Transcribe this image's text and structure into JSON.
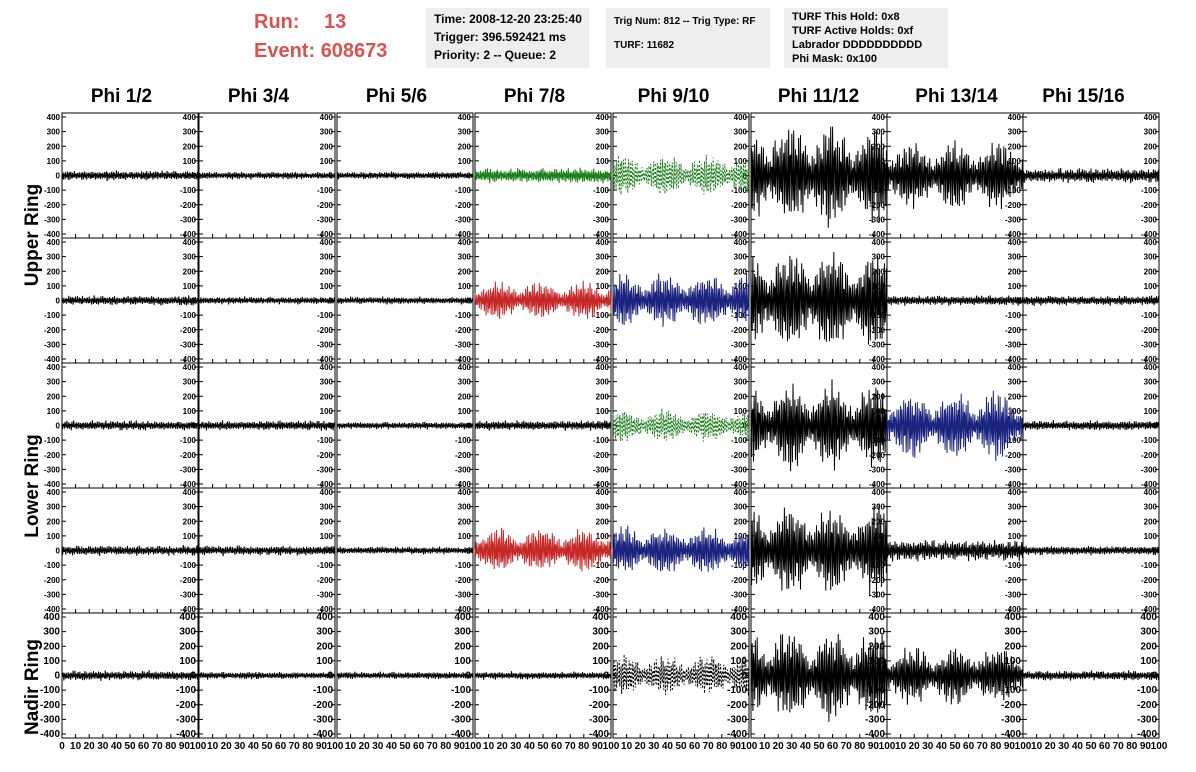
{
  "run": {
    "run_label": "Run:",
    "run_value": "13",
    "event_label": "Event:",
    "event_value": "608673"
  },
  "info_time": {
    "line1": "Time: 2008-12-20 23:25:40",
    "line2": "Trigger: 396.592421 ms",
    "line3": "Priority: 2 -- Queue: 2"
  },
  "info_trig": {
    "line1": "Trig Num: 812 -- Trig Type: RF",
    "line2": "TURF: 11682"
  },
  "info_turf": {
    "line1": "TURF This Hold: 0x8",
    "line2": "TURF Active Holds: 0xf",
    "line3": "Labrador DDDDDDDDDD",
    "line4": "Phi Mask: 0x100"
  },
  "columns": [
    "Phi 1/2",
    "Phi 3/4",
    "Phi 5/6",
    "Phi 7/8",
    "Phi 9/10",
    "Phi 11/12",
    "Phi 13/14",
    "Phi 15/16"
  ],
  "ring_labels": {
    "upper": "Upper Ring",
    "lower": "Lower Ring",
    "nadir": "Nadir Ring"
  },
  "colors": {
    "title_red": "#d9534f",
    "panel_bg": "#eeeeee",
    "trace_black": "#000000",
    "trace_green": "#1a7f1a",
    "trace_red": "#c62828",
    "trace_blue": "#1a237e"
  },
  "chart_data": {
    "type": "line",
    "title": "",
    "xlabel": "",
    "ylabel": "",
    "xlim": [
      0,
      100
    ],
    "ylim": [
      -400,
      400
    ],
    "y_ticks": [
      -400,
      -300,
      -200,
      -100,
      0,
      100,
      200,
      300,
      400
    ],
    "x_ticks": [
      0,
      10,
      20,
      30,
      40,
      50,
      60,
      70,
      80,
      90,
      100
    ],
    "x_tick_labels": [
      "0",
      "10",
      "20",
      "30",
      "40",
      "50",
      "60",
      "70",
      "80",
      "90",
      "100"
    ],
    "grid": false,
    "panel_amplitudes": [
      [
        40,
        30,
        30,
        60,
        150,
        380,
        250,
        60
      ],
      [
        40,
        30,
        30,
        140,
        200,
        380,
        40,
        40
      ],
      [
        40,
        40,
        30,
        40,
        120,
        320,
        250,
        40
      ],
      [
        40,
        40,
        30,
        170,
        180,
        340,
        90,
        40
      ],
      [
        40,
        30,
        30,
        30,
        150,
        340,
        220,
        40
      ]
    ],
    "panel_colors": [
      [
        "black",
        "black",
        "black",
        "green",
        "green-dashed",
        "black",
        "black",
        "black"
      ],
      [
        "black",
        "black",
        "black",
        "red",
        "blue",
        "black",
        "black",
        "black"
      ],
      [
        "black",
        "black",
        "black",
        "black",
        "green-dashed",
        "black",
        "blue",
        "black"
      ],
      [
        "black",
        "black",
        "black",
        "red",
        "blue",
        "black",
        "black",
        "black"
      ],
      [
        "black",
        "black",
        "black",
        "black",
        "black-dashed",
        "black",
        "black",
        "black"
      ]
    ]
  }
}
